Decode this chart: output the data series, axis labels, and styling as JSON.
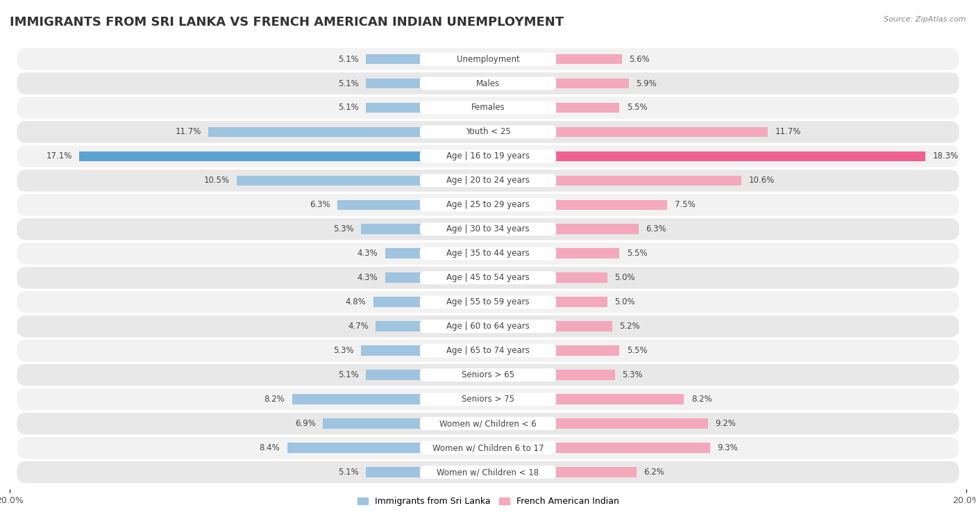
{
  "title": "IMMIGRANTS FROM SRI LANKA VS FRENCH AMERICAN INDIAN UNEMPLOYMENT",
  "source": "Source: ZipAtlas.com",
  "categories": [
    "Unemployment",
    "Males",
    "Females",
    "Youth < 25",
    "Age | 16 to 19 years",
    "Age | 20 to 24 years",
    "Age | 25 to 29 years",
    "Age | 30 to 34 years",
    "Age | 35 to 44 years",
    "Age | 45 to 54 years",
    "Age | 55 to 59 years",
    "Age | 60 to 64 years",
    "Age | 65 to 74 years",
    "Seniors > 65",
    "Seniors > 75",
    "Women w/ Children < 6",
    "Women w/ Children 6 to 17",
    "Women w/ Children < 18"
  ],
  "sri_lanka": [
    5.1,
    5.1,
    5.1,
    11.7,
    17.1,
    10.5,
    6.3,
    5.3,
    4.3,
    4.3,
    4.8,
    4.7,
    5.3,
    5.1,
    8.2,
    6.9,
    8.4,
    5.1
  ],
  "french_indian": [
    5.6,
    5.9,
    5.5,
    11.7,
    18.3,
    10.6,
    7.5,
    6.3,
    5.5,
    5.0,
    5.0,
    5.2,
    5.5,
    5.3,
    8.2,
    9.2,
    9.3,
    6.2
  ],
  "sri_lanka_color": "#9ec4e0",
  "french_indian_color": "#f4a8bc",
  "sri_lanka_highlight_color": "#5ba3d0",
  "french_indian_highlight_color": "#f06090",
  "background_color": "#ffffff",
  "row_bg_even": "#f2f2f2",
  "row_bg_odd": "#e8e8e8",
  "xlim": 20.0,
  "bar_height": 0.6,
  "title_fontsize": 13,
  "label_fontsize": 8.5,
  "value_fontsize": 8.5,
  "legend_label_sri_lanka": "Immigrants from Sri Lanka",
  "legend_label_french_indian": "French American Indian"
}
